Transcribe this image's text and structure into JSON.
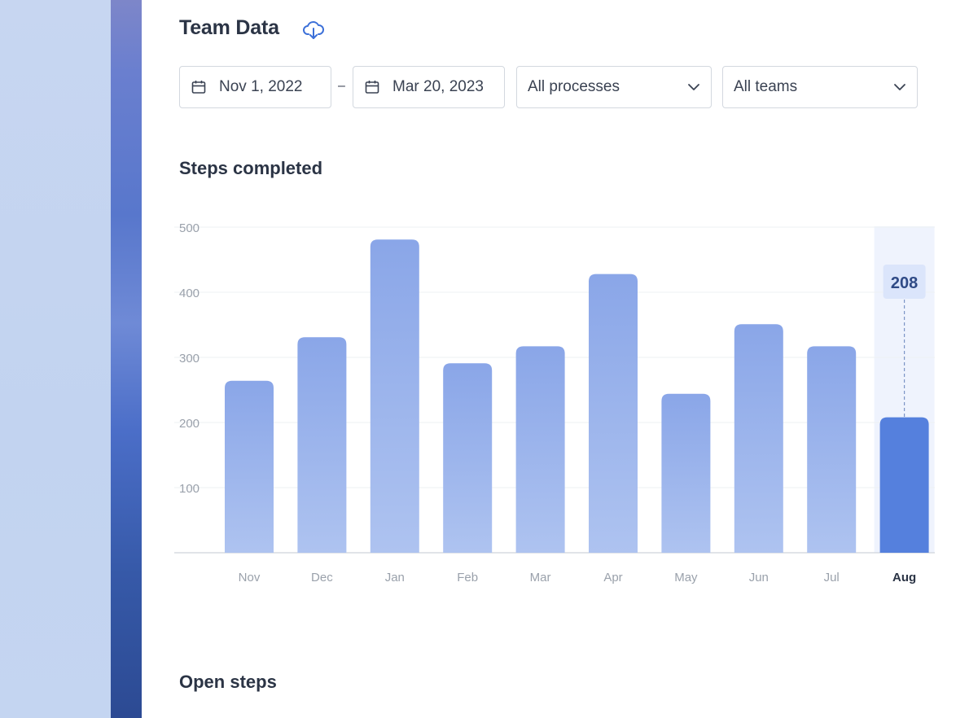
{
  "header": {
    "title": "Team Data",
    "download_icon": "cloud-download-icon"
  },
  "filters": {
    "start_date": "Nov 1, 2022",
    "separator": "–",
    "end_date": "Mar 20, 2023",
    "process_select": "All processes",
    "team_select": "All teams"
  },
  "sections": {
    "steps_completed": "Steps completed",
    "open_steps": "Open steps"
  },
  "colors": {
    "bar_top": "#8aa6e8",
    "bar_bottom": "#aec3f0",
    "bar_active": "#5580dd",
    "highlight_column": "#eff3fd",
    "tooltip_bg": "#dbe5fb",
    "tooltip_text": "#2f4a86",
    "icon_blue": "#3b6fd8"
  },
  "chart_data": {
    "type": "bar",
    "categories": [
      "Nov",
      "Dec",
      "Jan",
      "Feb",
      "Mar",
      "Apr",
      "May",
      "Jun",
      "Jul",
      "Aug"
    ],
    "values": [
      264,
      331,
      481,
      291,
      317,
      428,
      244,
      351,
      317,
      208
    ],
    "yticks": [
      100,
      200,
      300,
      400,
      500
    ],
    "ylim": [
      0,
      500
    ],
    "highlighted_category": "Aug",
    "tooltip_value": "208",
    "grid": true
  }
}
